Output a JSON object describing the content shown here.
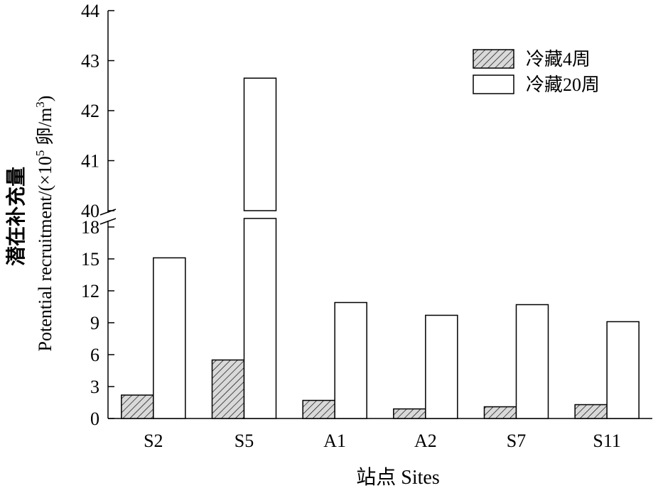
{
  "chart_data": {
    "type": "bar",
    "xlabel": "站点 Sites",
    "ylabel_cn": "潜在补充量",
    "ylabel_en": "Potential recruitment/(×10",
    "ylabel_exp": "5",
    "ylabel_unit": " 卵/m",
    "ylabel_unit_exp": "3",
    "ylabel_close": ")",
    "categories": [
      "S2",
      "S5",
      "A1",
      "A2",
      "S7",
      "S11"
    ],
    "series": [
      {
        "name": "冷藏4周",
        "values": [
          2.2,
          5.5,
          1.7,
          0.9,
          1.1,
          1.3
        ],
        "pattern": "hatch"
      },
      {
        "name": "冷藏20周",
        "values": [
          15.1,
          42.65,
          10.9,
          9.7,
          10.7,
          9.1
        ],
        "pattern": "open"
      }
    ],
    "axis_break": true,
    "lower_ylim": [
      0,
      18
    ],
    "upper_ylim": [
      40,
      44
    ],
    "lower_ticks": [
      "0",
      "3",
      "6",
      "9",
      "12",
      "15",
      "18"
    ],
    "upper_ticks": [
      "40",
      "41",
      "42",
      "43",
      "44"
    ],
    "legend_position": "top-right",
    "grid": false
  }
}
